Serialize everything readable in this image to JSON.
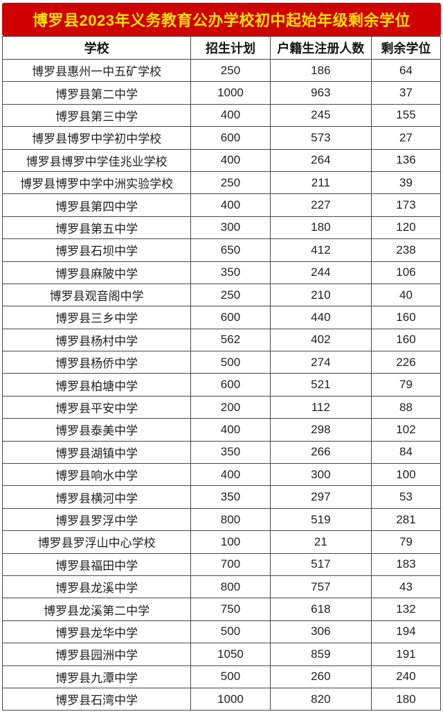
{
  "title": {
    "text": "博罗县2023年义务教育公办学校初中起始年级剩余学位",
    "bg_color": "#ce0000",
    "text_color": "#ffe000"
  },
  "table": {
    "columns": [
      "学校",
      "招生计划",
      "户籍生注册人数",
      "剩余学位"
    ],
    "rows": [
      [
        "博罗县惠州一中五矿学校",
        "250",
        "186",
        "64"
      ],
      [
        "博罗县第二中学",
        "1000",
        "963",
        "37"
      ],
      [
        "博罗县第三中学",
        "400",
        "245",
        "155"
      ],
      [
        "博罗县博罗中学初中学校",
        "600",
        "573",
        "27"
      ],
      [
        "博罗县博罗中学佳兆业学校",
        "400",
        "264",
        "136"
      ],
      [
        "博罗县博罗中学中洲实验学校",
        "250",
        "211",
        "39"
      ],
      [
        "博罗县第四中学",
        "400",
        "227",
        "173"
      ],
      [
        "博罗县第五中学",
        "300",
        "180",
        "120"
      ],
      [
        "博罗县石坝中学",
        "650",
        "412",
        "238"
      ],
      [
        "博罗县麻陂中学",
        "350",
        "244",
        "106"
      ],
      [
        "博罗县观音阁中学",
        "250",
        "210",
        "40"
      ],
      [
        "博罗县三乡中学",
        "600",
        "440",
        "160"
      ],
      [
        "博罗县杨村中学",
        "562",
        "402",
        "160"
      ],
      [
        "博罗县杨侨中学",
        "500",
        "274",
        "226"
      ],
      [
        "博罗县柏塘中学",
        "600",
        "521",
        "79"
      ],
      [
        "博罗县平安中学",
        "200",
        "112",
        "88"
      ],
      [
        "博罗县泰美中学",
        "400",
        "298",
        "102"
      ],
      [
        "博罗县湖镇中学",
        "350",
        "266",
        "84"
      ],
      [
        "博罗县响水中学",
        "400",
        "300",
        "100"
      ],
      [
        "博罗县横河中学",
        "350",
        "297",
        "53"
      ],
      [
        "博罗县罗浮中学",
        "800",
        "519",
        "281"
      ],
      [
        "博罗县罗浮山中心学校",
        "100",
        "21",
        "79"
      ],
      [
        "博罗县福田中学",
        "700",
        "517",
        "183"
      ],
      [
        "博罗县龙溪中学",
        "800",
        "757",
        "43"
      ],
      [
        "博罗县龙溪第二中学",
        "750",
        "618",
        "132"
      ],
      [
        "博罗县龙华中学",
        "500",
        "306",
        "194"
      ],
      [
        "博罗县园洲中学",
        "1050",
        "859",
        "191"
      ],
      [
        "博罗县九潭中学",
        "500",
        "260",
        "240"
      ],
      [
        "博罗县石湾中学",
        "1000",
        "820",
        "180"
      ]
    ]
  }
}
